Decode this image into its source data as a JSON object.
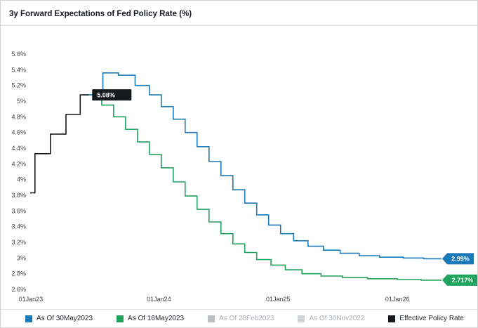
{
  "header": {
    "title": "3y Forward Expectations of Fed Policy Rate (%)"
  },
  "chart_data": {
    "type": "line",
    "subtype": "step",
    "title": "3y Forward Expectations of Fed Policy Rate (%)",
    "xlabel": "",
    "ylabel": "",
    "grid": false,
    "legend_position": "bottom",
    "xlim": [
      2022.92,
      2026.37
    ],
    "ylim": [
      2.6,
      5.6
    ],
    "x_ticks": [
      {
        "value": 2023.0,
        "label": "01Jan23"
      },
      {
        "value": 2024.0,
        "label": "01Jan24"
      },
      {
        "value": 2025.0,
        "label": "01Jan25"
      },
      {
        "value": 2026.0,
        "label": "01Jan26"
      }
    ],
    "y_ticks": [
      {
        "value": 2.6,
        "label": "2.6%"
      },
      {
        "value": 2.8,
        "label": "2.8%"
      },
      {
        "value": 3.0,
        "label": "3%"
      },
      {
        "value": 3.2,
        "label": "3.2%"
      },
      {
        "value": 3.4,
        "label": "3.4%"
      },
      {
        "value": 3.6,
        "label": "3.6%"
      },
      {
        "value": 3.8,
        "label": "3.8%"
      },
      {
        "value": 4.0,
        "label": "4%"
      },
      {
        "value": 4.2,
        "label": "4.2%"
      },
      {
        "value": 4.4,
        "label": "4.4%"
      },
      {
        "value": 4.6,
        "label": "4.6%"
      },
      {
        "value": 4.8,
        "label": "4.8%"
      },
      {
        "value": 5.0,
        "label": "5%"
      },
      {
        "value": 5.2,
        "label": "5.2%"
      },
      {
        "value": 5.4,
        "label": "5.4%"
      },
      {
        "value": 5.6,
        "label": "5.6%"
      }
    ],
    "series": [
      {
        "name": "As Of 16May2023",
        "color": "#21a25f",
        "end_label": "2.717%",
        "points": [
          [
            2023.37,
            5.08
          ],
          [
            2023.52,
            4.95
          ],
          [
            2023.62,
            4.8
          ],
          [
            2023.72,
            4.64
          ],
          [
            2023.82,
            4.48
          ],
          [
            2023.92,
            4.32
          ],
          [
            2024.02,
            4.15
          ],
          [
            2024.12,
            3.97
          ],
          [
            2024.22,
            3.79
          ],
          [
            2024.32,
            3.62
          ],
          [
            2024.42,
            3.46
          ],
          [
            2024.52,
            3.31
          ],
          [
            2024.62,
            3.18
          ],
          [
            2024.72,
            3.07
          ],
          [
            2024.82,
            2.98
          ],
          [
            2024.94,
            2.91
          ],
          [
            2025.06,
            2.85
          ],
          [
            2025.2,
            2.8
          ],
          [
            2025.36,
            2.77
          ],
          [
            2025.54,
            2.75
          ],
          [
            2025.75,
            2.735
          ],
          [
            2026.0,
            2.725
          ],
          [
            2026.2,
            2.717
          ],
          [
            2026.37,
            2.717
          ]
        ]
      },
      {
        "name": "As Of 30May2023",
        "color": "#1b79b8",
        "end_label": "2.99%",
        "points": [
          [
            2023.41,
            5.08
          ],
          [
            2023.53,
            5.36
          ],
          [
            2023.66,
            5.33
          ],
          [
            2023.8,
            5.2
          ],
          [
            2023.92,
            5.08
          ],
          [
            2024.02,
            4.93
          ],
          [
            2024.12,
            4.77
          ],
          [
            2024.22,
            4.6
          ],
          [
            2024.32,
            4.42
          ],
          [
            2024.42,
            4.23
          ],
          [
            2024.52,
            4.05
          ],
          [
            2024.62,
            3.87
          ],
          [
            2024.72,
            3.7
          ],
          [
            2024.82,
            3.55
          ],
          [
            2024.92,
            3.42
          ],
          [
            2025.02,
            3.31
          ],
          [
            2025.13,
            3.22
          ],
          [
            2025.25,
            3.15
          ],
          [
            2025.38,
            3.1
          ],
          [
            2025.52,
            3.06
          ],
          [
            2025.68,
            3.03
          ],
          [
            2025.85,
            3.01
          ],
          [
            2026.05,
            3.0
          ],
          [
            2026.22,
            2.99
          ],
          [
            2026.37,
            2.99
          ]
        ]
      },
      {
        "name": "Effective Policy Rate",
        "color": "#15181d",
        "annotation": {
          "label": "5.08%",
          "x": 2023.44,
          "value": 5.08
        },
        "points": [
          [
            2022.92,
            3.83
          ],
          [
            2022.96,
            4.33
          ],
          [
            2023.09,
            4.58
          ],
          [
            2023.22,
            4.83
          ],
          [
            2023.34,
            5.08
          ],
          [
            2023.41,
            5.08
          ]
        ]
      }
    ],
    "legend": [
      {
        "label": "As Of 30May2023",
        "color": "#1b79b8",
        "active": true
      },
      {
        "label": "As Of 16May2023",
        "color": "#21a25f",
        "active": true
      },
      {
        "label": "As Of 28Feb2023",
        "color": "#bcc0c4",
        "active": false
      },
      {
        "label": "As Of 30Nov2022",
        "color": "#d1d4d7",
        "active": false
      },
      {
        "label": "Effective Policy Rate",
        "color": "#15181d",
        "active": true
      }
    ]
  }
}
